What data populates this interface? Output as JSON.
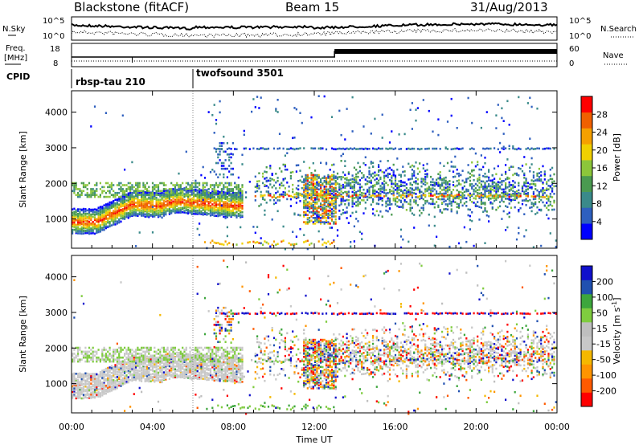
{
  "header": {
    "station": "Blackstone (fitACF)",
    "beam": "Beam 15",
    "date": "31/Aug/2013"
  },
  "noise_panel": {
    "left_label": "N.Sky",
    "right_label": "N.Search",
    "yticks_left": [
      "10^5",
      "10^0"
    ],
    "yticks_right": [
      "10^5",
      "10^0"
    ]
  },
  "freq_panel": {
    "left_label_1": "Freq.",
    "left_label_2": "[MHz]",
    "right_label": "Nave",
    "yticks_left": [
      "18",
      "8"
    ],
    "yticks_right": [
      "60",
      "0"
    ]
  },
  "cpid": {
    "label": "CPID",
    "modes": [
      {
        "name": "rbsp-tau 210",
        "start_hour": 0
      },
      {
        "name": "twofsound 3501",
        "start_hour": 6
      }
    ]
  },
  "colors": {
    "power": [
      "#0000ff",
      "#2e5fbf",
      "#3a8a8a",
      "#4a9a50",
      "#8cc63a",
      "#f0d000",
      "#f5a000",
      "#f06000",
      "#ff0000"
    ],
    "velocity": [
      "#ff0000",
      "#ff5a00",
      "#ff9400",
      "#f5b800",
      "#c8c8c8",
      "#bfbfbf",
      "#7fcc3f",
      "#3da63d",
      "#2050b0",
      "#1010cc"
    ]
  },
  "chart_data": [
    {
      "type": "heatmap",
      "name": "power",
      "ylabel": "Slant Range [km]",
      "yticks": [
        1000,
        2000,
        3000,
        4000
      ],
      "ylim": [
        180,
        4600
      ],
      "colorbar_label": "Power [dB]",
      "colorbar_ticks": [
        "4",
        "8",
        "12",
        "16",
        "20",
        "24",
        "28"
      ],
      "colorbar_range": [
        0,
        30
      ]
    },
    {
      "type": "heatmap",
      "name": "velocity",
      "ylabel": "Slant Range [km]",
      "yticks": [
        1000,
        2000,
        3000,
        4000
      ],
      "ylim": [
        180,
        4600
      ],
      "colorbar_label": "Velocity [m s^-1]",
      "colorbar_ticks": [
        "-200",
        "-100",
        "-50",
        "-15",
        "15",
        "50",
        "100",
        "200"
      ]
    }
  ],
  "xaxis": {
    "label": "Time UT",
    "range_hours": [
      0,
      24
    ],
    "ticks": [
      "00:00",
      "04:00",
      "08:00",
      "12:00",
      "16:00",
      "20:00",
      "00:00"
    ]
  }
}
